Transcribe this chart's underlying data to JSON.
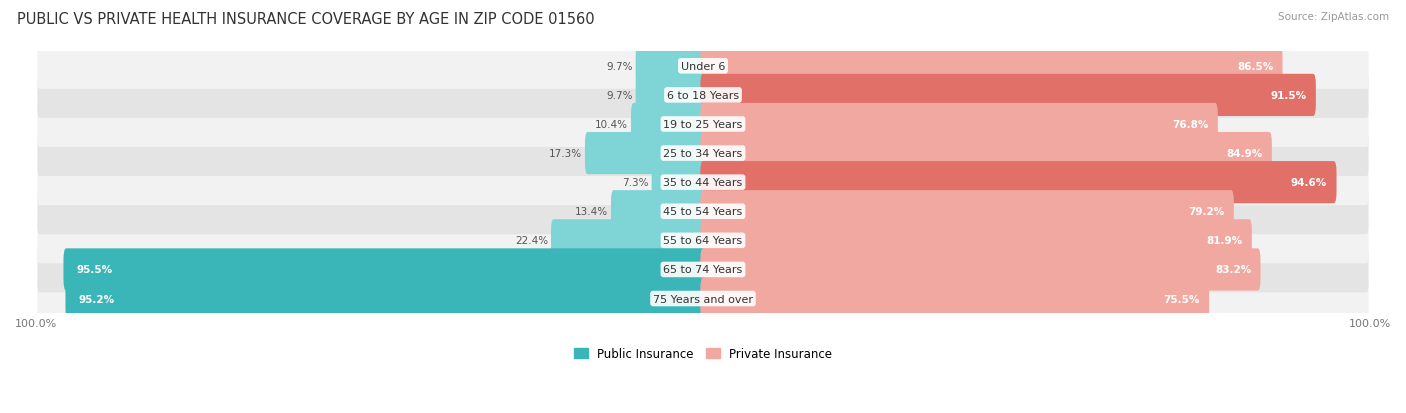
{
  "title": "PUBLIC VS PRIVATE HEALTH INSURANCE COVERAGE BY AGE IN ZIP CODE 01560",
  "source": "Source: ZipAtlas.com",
  "categories": [
    "Under 6",
    "6 to 18 Years",
    "19 to 25 Years",
    "25 to 34 Years",
    "35 to 44 Years",
    "45 to 54 Years",
    "55 to 64 Years",
    "65 to 74 Years",
    "75 Years and over"
  ],
  "public_values": [
    9.7,
    9.7,
    10.4,
    17.3,
    7.3,
    13.4,
    22.4,
    95.5,
    95.2
  ],
  "private_values": [
    86.5,
    91.5,
    76.8,
    84.9,
    94.6,
    79.2,
    81.9,
    83.2,
    75.5
  ],
  "public_color_dark": "#3ab5b8",
  "public_color_light": "#7fd4d6",
  "private_color_dark": "#e07068",
  "private_color_light": "#f0a8a0",
  "row_bg_color_light": "#f2f2f2",
  "row_bg_color_dark": "#e4e4e4",
  "title_fontsize": 10.5,
  "source_fontsize": 7.5,
  "label_fontsize": 8,
  "value_fontsize": 7.5,
  "max_value": 100.0,
  "legend_labels": [
    "Public Insurance",
    "Private Insurance"
  ]
}
